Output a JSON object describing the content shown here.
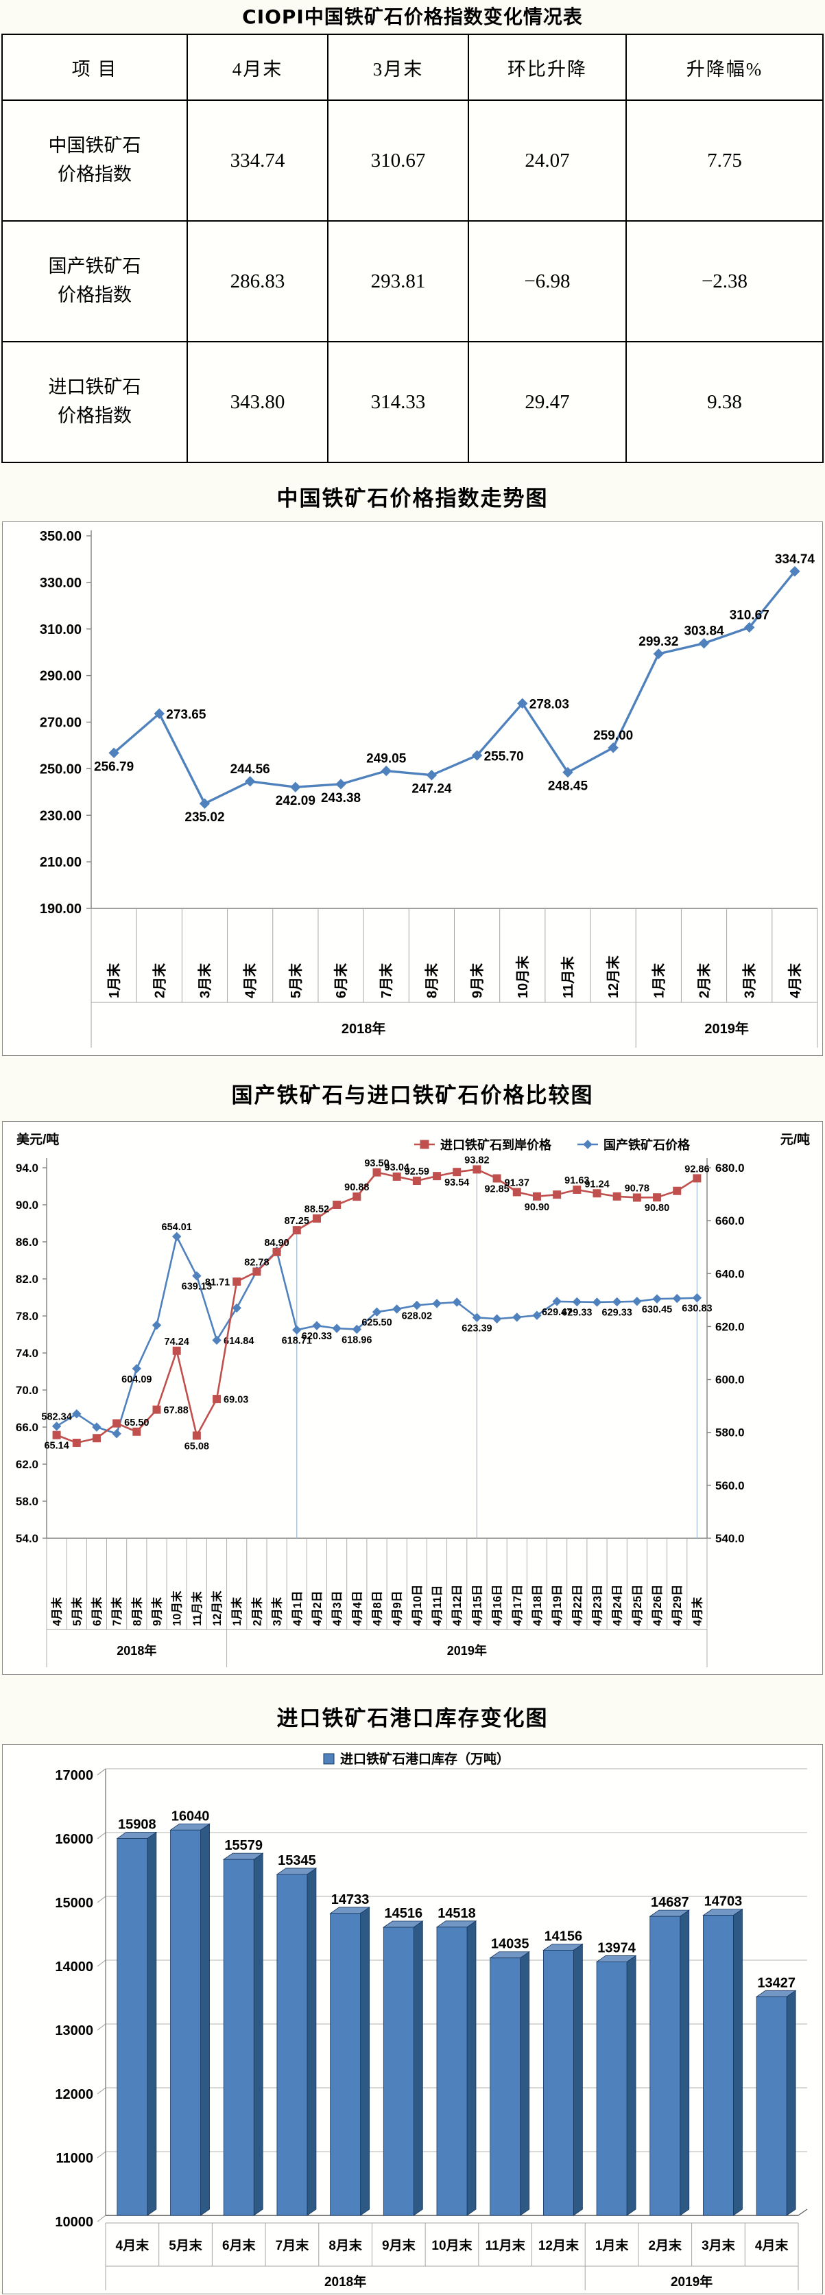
{
  "table_section": {
    "title": "CIOPI中国铁矿石价格指数变化情况表",
    "headers": [
      "项  目",
      "4月末",
      "3月末",
      "环比升降",
      "升降幅%"
    ],
    "rows": [
      {
        "label_lines": [
          "中国铁矿石",
          "价格指数"
        ],
        "values": [
          "334.74",
          "310.67",
          "24.07",
          "7.75"
        ]
      },
      {
        "label_lines": [
          "国产铁矿石",
          "价格指数"
        ],
        "values": [
          "286.83",
          "293.81",
          "−6.98",
          "−2.38"
        ]
      },
      {
        "label_lines": [
          "进口铁矿石",
          "价格指数"
        ],
        "values": [
          "343.80",
          "314.33",
          "29.47",
          "9.38"
        ]
      }
    ]
  },
  "chart_data": [
    {
      "type": "line",
      "title": "中国铁矿石价格指数走势图",
      "categories": [
        "1月末",
        "2月末",
        "3月末",
        "4月末",
        "5月末",
        "6月末",
        "7月末",
        "8月末",
        "9月末",
        "10月末",
        "11月末",
        "12月末",
        "1月末",
        "2月末",
        "3月末",
        "4月末"
      ],
      "category_groups": [
        {
          "label": "2018年",
          "span": 12
        },
        {
          "label": "2019年",
          "span": 4
        }
      ],
      "ylim": [
        190,
        350
      ],
      "ytick_step": 20,
      "ytick_decimals": 2,
      "grid": false,
      "series": [
        {
          "name": "中国铁矿石价格指数",
          "color": "#4F81BD",
          "marker": "diamond",
          "values": [
            256.79,
            273.65,
            235.02,
            244.56,
            242.09,
            243.38,
            249.05,
            247.24,
            255.7,
            278.03,
            248.45,
            259.0,
            299.32,
            303.84,
            310.67,
            334.74
          ],
          "labels": [
            "256.79",
            "273.65",
            "235.02",
            "244.56",
            "242.09",
            "243.38",
            "249.05",
            "247.24",
            "255.70",
            "278.03",
            "248.45",
            "259.00",
            "299.32",
            "303.84",
            "310.67",
            "334.74"
          ],
          "label_pos": [
            "below",
            "right",
            "below",
            "above",
            "below",
            "below",
            "above",
            "below",
            "right",
            "right",
            "below",
            "above",
            "above",
            "above",
            "above",
            "above"
          ]
        }
      ]
    },
    {
      "type": "line-2axis",
      "title": "国产铁矿石与进口铁矿石价格比较图",
      "left_axis": {
        "unit": "美元/吨",
        "min": 54,
        "max": 94,
        "step": 4,
        "decimals": 1
      },
      "right_axis": {
        "unit": "元/吨",
        "min": 540,
        "max": 680,
        "step": 20,
        "decimals": 1
      },
      "categories": [
        "4月末",
        "5月末",
        "6月末",
        "7月末",
        "8月末",
        "9月末",
        "10月末",
        "11月末",
        "12月末",
        "1月末",
        "2月末",
        "3月末",
        "4月1日",
        "4月2日",
        "4月3日",
        "4月4日",
        "4月8日",
        "4月9日",
        "4月10日",
        "4月11日",
        "4月12日",
        "4月15日",
        "4月16日",
        "4月17日",
        "4月18日",
        "4月19日",
        "4月22日",
        "4月23日",
        "4月24日",
        "4月25日",
        "4月26日",
        "4月29日",
        "4月末"
      ],
      "category_groups": [
        {
          "label": "2018年",
          "span": 9
        },
        {
          "label": "2019年",
          "span": 24
        }
      ],
      "dropline_indices": [
        12,
        21,
        32
      ],
      "dropline_color": "#9DB9D9",
      "series": [
        {
          "name": "国产铁矿石价格",
          "axis": "right",
          "color": "#4F81BD",
          "marker": "diamond",
          "values": [
            582.34,
            587.0,
            582.0,
            579.5,
            604.09,
            620.5,
            654.01,
            639.13,
            614.84,
            627.0,
            641.0,
            648.5,
            618.71,
            620.33,
            619.3,
            618.96,
            625.5,
            626.6,
            628.02,
            628.7,
            629.2,
            623.39,
            622.9,
            623.5,
            624.2,
            629.47,
            629.33,
            629.2,
            629.33,
            629.5,
            630.45,
            630.6,
            630.83
          ],
          "labels": [
            "582.34",
            null,
            null,
            null,
            "604.09",
            null,
            "654.01",
            "639.13",
            "614.84",
            null,
            null,
            null,
            "618.71",
            "620.33",
            null,
            "618.96",
            "625.50",
            null,
            "628.02",
            null,
            null,
            "623.39",
            null,
            null,
            null,
            "629.47",
            "629.33",
            null,
            "629.33",
            null,
            "630.45",
            null,
            "630.83"
          ],
          "label_pos": [
            "above",
            null,
            null,
            null,
            "below",
            null,
            "above",
            "below",
            "right",
            null,
            null,
            null,
            "below",
            "below",
            null,
            "below",
            "below",
            null,
            "below",
            null,
            null,
            "below",
            null,
            null,
            null,
            "below",
            "below",
            null,
            "below",
            null,
            "below",
            null,
            "below"
          ]
        },
        {
          "name": "进口铁矿石到岸价格",
          "axis": "left",
          "color": "#C0504D",
          "marker": "square",
          "values": [
            65.14,
            64.3,
            64.8,
            66.4,
            65.5,
            67.88,
            74.24,
            65.08,
            69.03,
            81.71,
            82.78,
            84.9,
            87.25,
            88.52,
            90.0,
            90.88,
            93.5,
            93.04,
            92.59,
            93.1,
            93.54,
            93.82,
            92.85,
            91.37,
            90.9,
            91.1,
            91.63,
            91.24,
            90.9,
            90.78,
            90.8,
            91.5,
            92.86
          ],
          "labels": [
            "65.14",
            null,
            null,
            null,
            "65.50",
            "67.88",
            "74.24",
            "65.08",
            "69.03",
            "81.71",
            "82.78",
            "84.90",
            "87.25",
            "88.52",
            null,
            "90.88",
            "93.50",
            "93.04",
            "92.59",
            null,
            "93.54",
            "93.82",
            "92.85",
            "91.37",
            "90.90",
            null,
            "91.63",
            "91.24",
            null,
            "90.78",
            "90.80",
            null,
            "92.86"
          ],
          "label_pos": [
            "below",
            null,
            null,
            null,
            "above",
            "right",
            "above",
            "below",
            "right",
            "left",
            "above",
            "above",
            "above",
            "above",
            null,
            "above",
            "above",
            "above",
            "above",
            null,
            "below",
            "above",
            "below",
            "above",
            "below",
            null,
            "above",
            "above",
            null,
            "above",
            "below",
            null,
            "above"
          ]
        }
      ],
      "legend_order": [
        1,
        0
      ]
    },
    {
      "type": "bar",
      "title": "进口铁矿石港口库存变化图",
      "legend": "进口铁矿石港口库存（万吨）",
      "categories": [
        "4月末",
        "5月末",
        "6月末",
        "7月末",
        "8月末",
        "9月末",
        "10月末",
        "11月末",
        "12月末",
        "1月末",
        "2月末",
        "3月末",
        "4月末"
      ],
      "category_groups": [
        {
          "label": "2018年",
          "span": 9
        },
        {
          "label": "2019年",
          "span": 4
        }
      ],
      "values": [
        15908,
        16040,
        15579,
        15345,
        14733,
        14516,
        14518,
        14035,
        14156,
        13974,
        14687,
        14703,
        13427
      ],
      "ylim": [
        10000,
        17000
      ],
      "ytick_step": 1000,
      "colors": {
        "front": "#4F81BD",
        "side": "#2E5984",
        "top": "#7397C5",
        "edge": "#17375E"
      }
    }
  ]
}
